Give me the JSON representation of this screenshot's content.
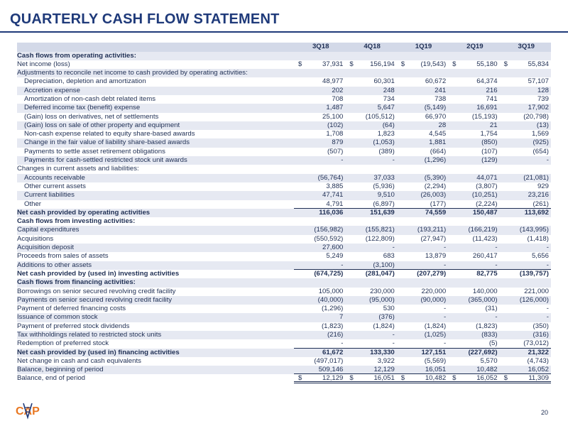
{
  "title": "QUARTERLY CASH FLOW STATEMENT",
  "page_number": "20",
  "logo_text": "CAP",
  "columns": [
    "3Q18",
    "4Q18",
    "1Q19",
    "2Q19",
    "3Q19"
  ],
  "colors": {
    "accent": "#1f3a7a",
    "logo_orange": "#e87722",
    "row_alt": "#e6e9f2"
  },
  "rows": [
    {
      "label": "Cash flows from operating activities:",
      "style": "section"
    },
    {
      "label": "Net income (loss)",
      "values": [
        "37,931",
        "156,194",
        "(19,543)",
        "55,180",
        "55,834"
      ],
      "dollar": true
    },
    {
      "label": "Adjustments to reconcile net income to cash provided by operating activities:"
    },
    {
      "label": "Depreciation, depletion and amortization",
      "values": [
        "48,977",
        "60,301",
        "60,672",
        "64,374",
        "57,107"
      ],
      "indent": true
    },
    {
      "label": "Accretion expense",
      "values": [
        "202",
        "248",
        "241",
        "216",
        "128"
      ],
      "indent": true
    },
    {
      "label": "Amortization of non-cash debt related items",
      "values": [
        "708",
        "734",
        "738",
        "741",
        "739"
      ],
      "indent": true
    },
    {
      "label": "Deferred income tax (benefit) expense",
      "values": [
        "1,487",
        "5,647",
        "(5,149)",
        "16,691",
        "17,902"
      ],
      "indent": true
    },
    {
      "label": "(Gain) loss on derivatives, net of settlements",
      "values": [
        "25,100",
        "(105,512)",
        "66,970",
        "(15,193)",
        "(20,798)"
      ],
      "indent": true
    },
    {
      "label": "(Gain) loss on sale of other property and equipment",
      "values": [
        "(102)",
        "(64)",
        "28",
        "21",
        "(13)"
      ],
      "indent": true
    },
    {
      "label": "Non-cash expense related to equity share-based awards",
      "values": [
        "1,708",
        "1,823",
        "4,545",
        "1,754",
        "1,569"
      ],
      "indent": true
    },
    {
      "label": "Change in the fair value of liability share-based awards",
      "values": [
        "879",
        "(1,053)",
        "1,881",
        "(850)",
        "(925)"
      ],
      "indent": true
    },
    {
      "label": "Payments to settle asset retirement obligations",
      "values": [
        "(507)",
        "(389)",
        "(664)",
        "(107)",
        "(654)"
      ],
      "indent": true
    },
    {
      "label": "Payments for cash-settled restricted stock unit awards",
      "values": [
        "-",
        "-",
        "(1,296)",
        "(129)",
        "-"
      ],
      "indent": true
    },
    {
      "label": "Changes in current assets and liabilities:"
    },
    {
      "label": "Accounts receivable",
      "values": [
        "(56,764)",
        "37,033",
        "(5,390)",
        "44,071",
        "(21,081)"
      ],
      "indent": true
    },
    {
      "label": "Other current assets",
      "values": [
        "3,885",
        "(5,936)",
        "(2,294)",
        "(3,807)",
        "929"
      ],
      "indent": true
    },
    {
      "label": "Current liabilities",
      "values": [
        "47,741",
        "9,510",
        "(26,003)",
        "(10,251)",
        "23,216"
      ],
      "indent": true
    },
    {
      "label": "Other",
      "values": [
        "4,791",
        "(6,897)",
        "(177)",
        "(2,224)",
        "(261)"
      ],
      "indent": true,
      "underline": true
    },
    {
      "label": "Net cash provided by operating activities",
      "values": [
        "116,036",
        "151,639",
        "74,559",
        "150,487",
        "113,692"
      ],
      "style": "total"
    },
    {
      "label": "Cash flows from investing activities:",
      "style": "section"
    },
    {
      "label": "Capital expenditures",
      "values": [
        "(156,982)",
        "(155,821)",
        "(193,211)",
        "(166,219)",
        "(143,995)"
      ]
    },
    {
      "label": "Acquisitions",
      "values": [
        "(550,592)",
        "(122,809)",
        "(27,947)",
        "(11,423)",
        "(1,418)"
      ]
    },
    {
      "label": "Acquisition deposit",
      "values": [
        "27,600",
        "-",
        "-",
        "-",
        "-"
      ]
    },
    {
      "label": "Proceeds from sales of assets",
      "values": [
        "5,249",
        "683",
        "13,879",
        "260,417",
        "5,656"
      ]
    },
    {
      "label": "Additions to other assets",
      "values": [
        "-",
        "(3,100)",
        "-",
        "-",
        "-"
      ],
      "underline": true
    },
    {
      "label": "Net cash provided by (used in) investing activities",
      "values": [
        "(674,725)",
        "(281,047)",
        "(207,279)",
        "82,775",
        "(139,757)"
      ],
      "style": "total"
    },
    {
      "label": "Cash flows from financing activities:",
      "style": "section"
    },
    {
      "label": "Borrowings on senior secured revolving credit facility",
      "values": [
        "105,000",
        "230,000",
        "220,000",
        "140,000",
        "221,000"
      ]
    },
    {
      "label": "Payments on senior secured revolving credit facility",
      "values": [
        "(40,000)",
        "(95,000)",
        "(90,000)",
        "(365,000)",
        "(126,000)"
      ]
    },
    {
      "label": "Payment of deferred financing costs",
      "values": [
        "(1,296)",
        "530",
        "-",
        "(31)",
        "-"
      ]
    },
    {
      "label": "Issuance of common stock",
      "values": [
        "7",
        "(376)",
        "-",
        "-",
        "-"
      ]
    },
    {
      "label": "Payment of preferred stock dividends",
      "values": [
        "(1,823)",
        "(1,824)",
        "(1,824)",
        "(1,823)",
        "(350)"
      ]
    },
    {
      "label": "Tax withholdings related to restricted stock units",
      "values": [
        "(216)",
        "-",
        "(1,025)",
        "(833)",
        "(316)"
      ]
    },
    {
      "label": "Redemption of preferred stock",
      "values": [
        "-",
        "-",
        "-",
        "(5)",
        "(73,012)"
      ],
      "underline": true
    },
    {
      "label": "Net cash provided by (used in) financing activities",
      "values": [
        "61,672",
        "133,330",
        "127,151",
        "(227,692)",
        "21,322"
      ],
      "style": "total"
    },
    {
      "label": "Net change in cash and cash equivalents",
      "values": [
        "(497,017)",
        "3,922",
        "(5,569)",
        "5,570",
        "(4,743)"
      ]
    },
    {
      "label": "Balance, beginning of period",
      "values": [
        "509,146",
        "12,129",
        "16,051",
        "10,482",
        "16,052"
      ],
      "underline": true
    },
    {
      "label": "Balance, end of period",
      "values": [
        "12,129",
        "16,051",
        "10,482",
        "16,052",
        "11,309"
      ],
      "dollar": true,
      "double_underline": true
    }
  ]
}
